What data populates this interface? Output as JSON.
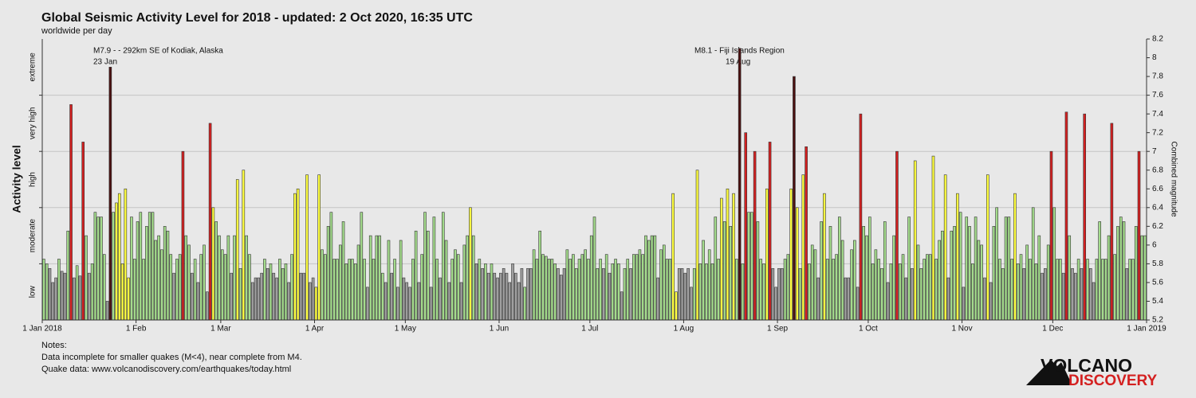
{
  "chart_data": {
    "type": "bar",
    "title": "Global Seismic Activity Level for 2018 - updated:  2 Oct 2020, 16:35 UTC",
    "subtitle": "worldwide per day",
    "y_label": "Activity level",
    "y2_label": "Combined magnitude",
    "levels": [
      "low",
      "moderate",
      "high",
      "very high",
      "extreme"
    ],
    "level_ticks": [
      5.8,
      6.4,
      7.0,
      7.6
    ],
    "grid": true,
    "xlim": [
      0,
      365
    ],
    "xticks": [
      {
        "value": 0,
        "label": "1 Jan 2018"
      },
      {
        "value": 31,
        "label": "1 Feb"
      },
      {
        "value": 59,
        "label": "1 Mar"
      },
      {
        "value": 90,
        "label": "1 Apr"
      },
      {
        "value": 120,
        "label": "1 May"
      },
      {
        "value": 151,
        "label": "1 Jun"
      },
      {
        "value": 181,
        "label": "1 Jul"
      },
      {
        "value": 212,
        "label": "1 Aug"
      },
      {
        "value": 243,
        "label": "1 Sep"
      },
      {
        "value": 273,
        "label": "1 Oct"
      },
      {
        "value": 304,
        "label": "1 Nov"
      },
      {
        "value": 334,
        "label": "1 Dec"
      },
      {
        "value": 365,
        "label": "1 Jan 2019"
      }
    ],
    "ylim": [
      5.2,
      8.2
    ],
    "yticks": [
      5.2,
      5.4,
      5.6,
      5.8,
      6,
      6.2,
      6.4,
      6.6,
      6.8,
      7,
      7.2,
      7.4,
      7.6,
      7.8,
      8,
      8.2
    ],
    "annotations": [
      {
        "text": "M7.9 - - 292km SE of Kodiak, Alaska",
        "date": "23 Jan"
      },
      {
        "text": "M8.1 - Fiji Islands Region",
        "date": "19 Aug"
      }
    ],
    "values": [
      5.85,
      5.8,
      5.75,
      5.6,
      5.65,
      5.85,
      5.72,
      5.7,
      6.15,
      7.5,
      5.65,
      5.78,
      5.67,
      7.1,
      6.1,
      5.7,
      5.8,
      6.35,
      6.3,
      6.3,
      5.9,
      5.4,
      7.9,
      6.35,
      6.45,
      6.55,
      5.8,
      6.6,
      5.65,
      6.3,
      5.85,
      6.25,
      6.35,
      5.85,
      6.2,
      6.35,
      6.35,
      6.05,
      6.1,
      5.95,
      6.2,
      6.15,
      5.9,
      5.7,
      5.85,
      5.9,
      7.0,
      6.1,
      6.0,
      5.7,
      5.85,
      5.6,
      5.9,
      6.0,
      5.5,
      7.3,
      6.4,
      6.25,
      6.1,
      5.95,
      5.9,
      6.1,
      5.7,
      6.1,
      6.7,
      5.75,
      6.8,
      6.1,
      5.9,
      5.6,
      5.65,
      5.65,
      5.7,
      5.85,
      5.75,
      5.8,
      5.7,
      5.65,
      5.85,
      5.75,
      5.8,
      5.6,
      5.9,
      6.55,
      6.6,
      5.7,
      5.7,
      6.75,
      5.6,
      5.65,
      5.55,
      6.75,
      5.95,
      5.9,
      6.2,
      6.35,
      5.85,
      5.85,
      6.0,
      6.25,
      5.8,
      5.85,
      5.85,
      5.8,
      6.0,
      6.35,
      5.85,
      5.55,
      6.1,
      5.85,
      6.1,
      6.1,
      5.7,
      5.6,
      6.05,
      5.7,
      5.85,
      5.55,
      6.05,
      5.65,
      5.6,
      5.55,
      5.85,
      6.15,
      5.6,
      5.9,
      6.35,
      6.15,
      5.55,
      6.3,
      5.85,
      5.65,
      6.35,
      6.05,
      5.6,
      5.85,
      5.95,
      5.9,
      5.6,
      6.0,
      6.1,
      6.4,
      6.1,
      5.8,
      5.85,
      5.75,
      5.8,
      5.7,
      5.8,
      5.7,
      5.65,
      5.7,
      5.75,
      5.7,
      5.6,
      5.8,
      5.7,
      5.6,
      5.75,
      5.55,
      5.75,
      5.75,
      5.95,
      5.85,
      6.15,
      5.9,
      5.88,
      5.85,
      5.85,
      5.8,
      5.75,
      5.68,
      5.75,
      5.95,
      5.85,
      5.9,
      5.75,
      5.85,
      5.9,
      5.95,
      5.85,
      6.1,
      6.3,
      5.75,
      5.85,
      5.75,
      5.9,
      5.7,
      5.8,
      5.85,
      5.8,
      5.5,
      5.75,
      5.85,
      5.75,
      5.9,
      5.9,
      5.95,
      5.9,
      6.1,
      6.05,
      6.1,
      6.1,
      5.65,
      5.95,
      6.0,
      5.85,
      5.85,
      6.55,
      5.5,
      5.75,
      5.75,
      5.7,
      5.75,
      5.55,
      5.75,
      6.8,
      5.8,
      6.05,
      5.8,
      5.95,
      5.8,
      6.3,
      5.85,
      6.5,
      6.25,
      6.6,
      6.2,
      6.55,
      5.85,
      8.1,
      5.8,
      7.2,
      6.35,
      6.35,
      7.0,
      6.25,
      5.85,
      5.8,
      6.6,
      7.1,
      5.75,
      5.55,
      5.75,
      5.75,
      5.85,
      5.9,
      6.6,
      7.8,
      6.4,
      5.75,
      6.75,
      7.05,
      5.8,
      6.0,
      5.95,
      5.65,
      6.25,
      6.55,
      5.85,
      6.2,
      5.85,
      5.9,
      6.3,
      6.05,
      5.65,
      5.65,
      5.95,
      6.05,
      5.55,
      7.4,
      6.2,
      6.1,
      6.3,
      5.8,
      5.95,
      5.85,
      5.75,
      6.25,
      5.6,
      5.8,
      6.1,
      7.0,
      5.8,
      5.9,
      5.65,
      6.3,
      5.75,
      6.9,
      6.0,
      5.75,
      5.85,
      5.9,
      5.9,
      6.95,
      5.85,
      6.05,
      6.15,
      6.75,
      5.65,
      6.15,
      6.2,
      6.55,
      6.35,
      5.55,
      6.3,
      6.2,
      5.8,
      6.3,
      6.05,
      6.0,
      5.65,
      6.75,
      5.6,
      6.2,
      6.4,
      5.85,
      5.75,
      6.3,
      6.3,
      5.85,
      6.55,
      5.8,
      5.9,
      5.75,
      6.0,
      5.85,
      6.4,
      5.8,
      6.1,
      5.7,
      5.75,
      6.0,
      7.0,
      6.4,
      5.85,
      5.85,
      5.7,
      7.42,
      6.1,
      5.75,
      5.7,
      5.85,
      5.75,
      7.4,
      5.85,
      5.75,
      5.6,
      5.85,
      6.25,
      5.85,
      5.85,
      6.1,
      7.3,
      5.9,
      6.2,
      6.3,
      6.25,
      5.75,
      5.85,
      5.85,
      6.2,
      7.0,
      6.1,
      6.1
    ],
    "colors": [
      "#a4dc8c",
      "#a4dc8c",
      "#a0a0a0",
      "#a0a0a0",
      "#a0a0a0",
      "#a4dc8c",
      "#a0a0a0",
      "#a0a0a0",
      "#a4dc8c",
      "#d42020",
      "#a0a0a0",
      "#a4dc8c",
      "#a0a0a0",
      "#d42020",
      "#a4dc8c",
      "#a0a0a0",
      "#a4dc8c",
      "#a4dc8c",
      "#a4dc8c",
      "#a4dc8c",
      "#a4dc8c",
      "#a0a0a0",
      "#4a1010",
      "#a4dc8c",
      "#ffff40",
      "#ffff40",
      "#ffff40",
      "#ffff40",
      "#ffff40",
      "#a4dc8c",
      "#a4dc8c",
      "#a4dc8c",
      "#a4dc8c",
      "#a4dc8c",
      "#a4dc8c",
      "#a4dc8c",
      "#a4dc8c",
      "#a4dc8c",
      "#a4dc8c",
      "#a4dc8c",
      "#a4dc8c",
      "#a4dc8c",
      "#a4dc8c",
      "#a0a0a0",
      "#a4dc8c",
      "#a4dc8c",
      "#d42020",
      "#a4dc8c",
      "#a4dc8c",
      "#a0a0a0",
      "#a4dc8c",
      "#a0a0a0",
      "#a4dc8c",
      "#a4dc8c",
      "#a0a0a0",
      "#d42020",
      "#ffff40",
      "#a4dc8c",
      "#a4dc8c",
      "#a4dc8c",
      "#a4dc8c",
      "#a4dc8c",
      "#a0a0a0",
      "#a4dc8c",
      "#ffff40",
      "#a4dc8c",
      "#ffff40",
      "#a4dc8c",
      "#a4dc8c",
      "#a0a0a0",
      "#a0a0a0",
      "#a0a0a0",
      "#a0a0a0",
      "#a4dc8c",
      "#a0a0a0",
      "#a4dc8c",
      "#a0a0a0",
      "#a0a0a0",
      "#a4dc8c",
      "#a4dc8c",
      "#a4dc8c",
      "#a0a0a0",
      "#a4dc8c",
      "#ffff40",
      "#ffff40",
      "#a0a0a0",
      "#a0a0a0",
      "#ffff40",
      "#a0a0a0",
      "#a0a0a0",
      "#ffff40",
      "#ffff40",
      "#a4dc8c",
      "#a4dc8c",
      "#a4dc8c",
      "#a4dc8c",
      "#a4dc8c",
      "#a4dc8c",
      "#a4dc8c",
      "#a4dc8c",
      "#a4dc8c",
      "#a4dc8c",
      "#a4dc8c",
      "#a4dc8c",
      "#a4dc8c",
      "#a4dc8c",
      "#a4dc8c",
      "#a0a0a0",
      "#a4dc8c",
      "#a4dc8c",
      "#a4dc8c",
      "#a4dc8c",
      "#a4dc8c",
      "#a0a0a0",
      "#a4dc8c",
      "#a0a0a0",
      "#a4dc8c",
      "#a0a0a0",
      "#a4dc8c",
      "#a0a0a0",
      "#a0a0a0",
      "#a0a0a0",
      "#a4dc8c",
      "#a4dc8c",
      "#a0a0a0",
      "#a4dc8c",
      "#a4dc8c",
      "#a4dc8c",
      "#a0a0a0",
      "#a4dc8c",
      "#a4dc8c",
      "#a0a0a0",
      "#a4dc8c",
      "#a4dc8c",
      "#a0a0a0",
      "#a4dc8c",
      "#a4dc8c",
      "#a4dc8c",
      "#a0a0a0",
      "#a4dc8c",
      "#a4dc8c",
      "#ffff40",
      "#a4dc8c",
      "#a0a0a0",
      "#a4dc8c",
      "#a0a0a0",
      "#a4dc8c",
      "#a0a0a0",
      "#a4dc8c",
      "#a0a0a0",
      "#a0a0a0",
      "#a0a0a0",
      "#a0a0a0",
      "#a0a0a0",
      "#a0a0a0",
      "#a0a0a0",
      "#a0a0a0",
      "#a0a0a0",
      "#a0a0a0",
      "#a4dc8c",
      "#a0a0a0",
      "#a0a0a0",
      "#a4dc8c",
      "#a4dc8c",
      "#a4dc8c",
      "#a4dc8c",
      "#a4dc8c",
      "#a4dc8c",
      "#a4dc8c",
      "#a4dc8c",
      "#a0a0a0",
      "#a0a0a0",
      "#a0a0a0",
      "#a4dc8c",
      "#a4dc8c",
      "#a4dc8c",
      "#a4dc8c",
      "#a4dc8c",
      "#a4dc8c",
      "#a4dc8c",
      "#a4dc8c",
      "#a4dc8c",
      "#a4dc8c",
      "#a4dc8c",
      "#a4dc8c",
      "#a0a0a0",
      "#a4dc8c",
      "#a0a0a0",
      "#a4dc8c",
      "#a4dc8c",
      "#a4dc8c",
      "#a0a0a0",
      "#a4dc8c",
      "#a4dc8c",
      "#a0a0a0",
      "#a4dc8c",
      "#a4dc8c",
      "#a4dc8c",
      "#a4dc8c",
      "#a4dc8c",
      "#a4dc8c",
      "#a4dc8c",
      "#a4dc8c",
      "#a0a0a0",
      "#a4dc8c",
      "#a4dc8c",
      "#a4dc8c",
      "#a4dc8c",
      "#ffff40",
      "#ffff40",
      "#a0a0a0",
      "#a0a0a0",
      "#a0a0a0",
      "#a0a0a0",
      "#a0a0a0",
      "#a4dc8c",
      "#ffff40",
      "#a4dc8c",
      "#a4dc8c",
      "#a4dc8c",
      "#a4dc8c",
      "#a4dc8c",
      "#a4dc8c",
      "#a4dc8c",
      "#ffff40",
      "#a4dc8c",
      "#ffff40",
      "#a4dc8c",
      "#ffff40",
      "#a4dc8c",
      "#4a1010",
      "#a4dc8c",
      "#d42020",
      "#a4dc8c",
      "#a4dc8c",
      "#d42020",
      "#a4dc8c",
      "#a4dc8c",
      "#a4dc8c",
      "#ffff40",
      "#d42020",
      "#a0a0a0",
      "#a0a0a0",
      "#a0a0a0",
      "#a0a0a0",
      "#a4dc8c",
      "#a4dc8c",
      "#ffff40",
      "#4a1010",
      "#ffff40",
      "#a4dc8c",
      "#ffff40",
      "#d42020",
      "#a4dc8c",
      "#a4dc8c",
      "#a4dc8c",
      "#a0a0a0",
      "#a4dc8c",
      "#ffff40",
      "#a4dc8c",
      "#a4dc8c",
      "#a4dc8c",
      "#a4dc8c",
      "#a4dc8c",
      "#a4dc8c",
      "#a0a0a0",
      "#a0a0a0",
      "#a4dc8c",
      "#a4dc8c",
      "#a0a0a0",
      "#d42020",
      "#a4dc8c",
      "#a4dc8c",
      "#a4dc8c",
      "#a4dc8c",
      "#a4dc8c",
      "#a4dc8c",
      "#a4dc8c",
      "#a4dc8c",
      "#a0a0a0",
      "#a4dc8c",
      "#a4dc8c",
      "#d42020",
      "#a4dc8c",
      "#a4dc8c",
      "#a0a0a0",
      "#a4dc8c",
      "#a0a0a0",
      "#ffff40",
      "#a4dc8c",
      "#a4dc8c",
      "#a4dc8c",
      "#a4dc8c",
      "#a4dc8c",
      "#ffff40",
      "#a4dc8c",
      "#a4dc8c",
      "#a4dc8c",
      "#ffff40",
      "#a0a0a0",
      "#a4dc8c",
      "#a4dc8c",
      "#ffff40",
      "#a4dc8c",
      "#a0a0a0",
      "#a4dc8c",
      "#a4dc8c",
      "#a4dc8c",
      "#a4dc8c",
      "#a4dc8c",
      "#a4dc8c",
      "#a0a0a0",
      "#ffff40",
      "#a0a0a0",
      "#a4dc8c",
      "#a4dc8c",
      "#a4dc8c",
      "#a4dc8c",
      "#a4dc8c",
      "#a4dc8c",
      "#a4dc8c",
      "#ffff40",
      "#a4dc8c",
      "#a4dc8c",
      "#a0a0a0",
      "#a4dc8c",
      "#a4dc8c",
      "#a4dc8c",
      "#a4dc8c",
      "#a4dc8c",
      "#a0a0a0",
      "#a0a0a0",
      "#a4dc8c",
      "#d42020",
      "#a4dc8c",
      "#a4dc8c",
      "#a4dc8c",
      "#a0a0a0",
      "#d42020",
      "#a4dc8c",
      "#a0a0a0",
      "#a0a0a0",
      "#a4dc8c",
      "#a0a0a0",
      "#d42020",
      "#a4dc8c",
      "#a0a0a0",
      "#a0a0a0",
      "#a4dc8c",
      "#a4dc8c",
      "#a4dc8c",
      "#a4dc8c",
      "#a4dc8c",
      "#d42020",
      "#a4dc8c",
      "#a4dc8c",
      "#a4dc8c",
      "#a4dc8c",
      "#a0a0a0",
      "#a4dc8c",
      "#a4dc8c",
      "#a4dc8c",
      "#d42020",
      "#a4dc8c",
      "#a4dc8c"
    ]
  },
  "notes": [
    "Notes:",
    "Data incomplete for smaller quakes (M<4), near complete from M4.",
    "Quake data: www.volcanodiscovery.com/earthquakes/today.html"
  ],
  "logo": {
    "line1": "VOLCANO",
    "line2": "DISCOVERY"
  }
}
